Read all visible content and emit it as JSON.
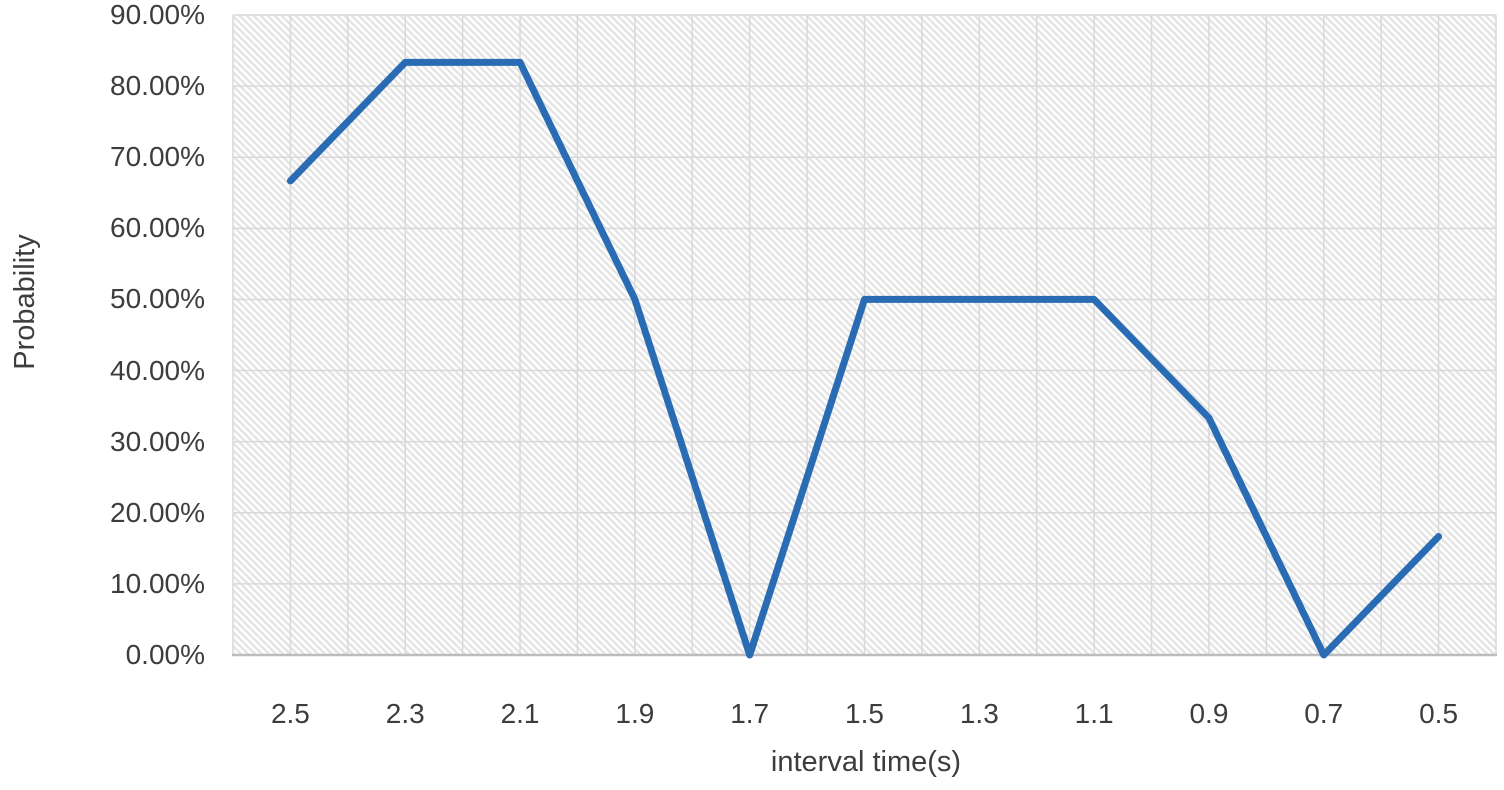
{
  "chart_data": {
    "type": "line",
    "title": "",
    "xlabel": "interval time(s)",
    "ylabel": "Probability",
    "categories": [
      "2.5",
      "2.3",
      "2.1",
      "1.9",
      "1.7",
      "1.5",
      "1.3",
      "1.1",
      "0.9",
      "0.7",
      "0.5"
    ],
    "series": [
      {
        "name": "Probability",
        "values": [
          66.67,
          83.33,
          83.33,
          50.0,
          0.0,
          50.0,
          50.0,
          50.0,
          33.33,
          0.0,
          16.67
        ]
      }
    ],
    "ylim": [
      0,
      90
    ],
    "y_tick_step": 10,
    "y_tick_labels": [
      "0.00%",
      "10.00%",
      "20.00%",
      "30.00%",
      "40.00%",
      "50.00%",
      "60.00%",
      "70.00%",
      "80.00%",
      "90.00%"
    ],
    "legend": "none",
    "grid": "horizontal major every 10%, vertical every half category band",
    "plot_background": "light diagonal hatch (top-left to bottom-right)",
    "colors": {
      "line": "#2a6cb4",
      "hatch": "#e4e4e4",
      "gridline": "#d9d9d9",
      "axis_line": "#bcbcbc",
      "text": "#3d3d3d"
    }
  }
}
